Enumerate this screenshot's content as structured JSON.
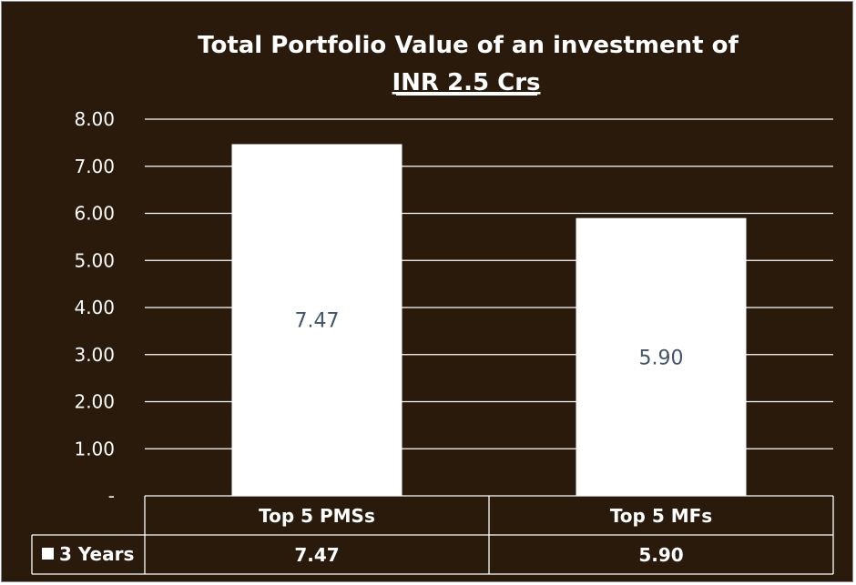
{
  "chart_data": {
    "type": "bar",
    "title": "Total Portfolio Value of an investment of",
    "subtitle": "INR 2.5 Crs",
    "categories": [
      "Top 5 PMSs",
      "Top 5 MFs"
    ],
    "series": [
      {
        "name": "3 Years",
        "values": [
          7.47,
          5.9
        ],
        "labels": [
          "7.47",
          "5.90"
        ]
      }
    ],
    "ylim": [
      0,
      8
    ],
    "yticks": [
      "-",
      "1.00",
      "2.00",
      "3.00",
      "4.00",
      "5.00",
      "6.00",
      "7.00",
      "8.00"
    ],
    "grid": true,
    "data_table": true,
    "colors": {
      "background": "#2a1a0b",
      "bar": "#ffffff",
      "grid": "#ffffff",
      "data_label": "#44546a",
      "text": "#ffffff"
    }
  }
}
